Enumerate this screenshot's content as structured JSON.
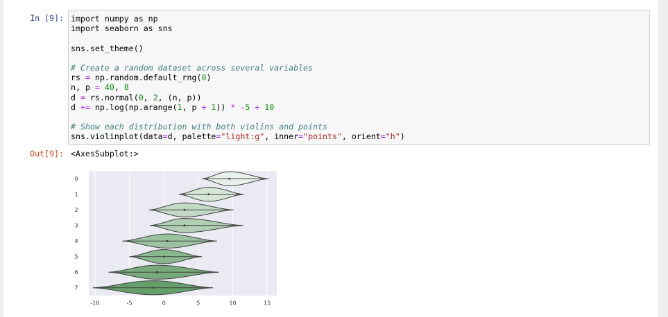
{
  "cell": {
    "prompt": "In [9]:",
    "code": [
      [
        "import numpy as np",
        "import seaborn as sns"
      ],
      [
        "sns.set_theme()"
      ],
      [
        "# Create a random dataset across several variables",
        "rs = np.random.default_rng(0)",
        "n, p = 40, 8",
        "d = rs.normal(0, 2, (n, p))",
        "d += np.log(np.arange(1, p + 1)) * -5 + 10"
      ],
      [
        "# Show each distribution with both violins and points",
        "sns.violinplot(data=d, palette=\"light:g\", inner=\"points\", orient=\"h\")"
      ]
    ]
  },
  "output": {
    "prompt": "Out[9]:",
    "text": "<AxesSubplot:>"
  },
  "chart_data": {
    "type": "violin",
    "orient": "h",
    "categories": [
      "0",
      "1",
      "2",
      "3",
      "4",
      "5",
      "6",
      "7"
    ],
    "violins": [
      {
        "min": 5.6,
        "median": 9.5,
        "max": 15.2,
        "color": "#e9f0ea"
      },
      {
        "min": 2.2,
        "median": 6.5,
        "max": 11.6,
        "color": "#d5e6d7"
      },
      {
        "min": -2.1,
        "median": 3,
        "max": 10.1,
        "color": "#c2dac5"
      },
      {
        "min": -2,
        "median": 3,
        "max": 11.5,
        "color": "#afceb3"
      },
      {
        "min": -6,
        "median": 0.5,
        "max": 7.7,
        "color": "#9cc3a0"
      },
      {
        "min": -5,
        "median": 0,
        "max": 5.5,
        "color": "#89b78e"
      },
      {
        "min": -8,
        "median": -1,
        "max": 8,
        "color": "#77ab7c"
      },
      {
        "min": -10.3,
        "median": -1.5,
        "max": 7.1,
        "color": "#65a06b"
      }
    ],
    "xlim": [
      -10.9,
      16.4
    ],
    "xticks": [
      -10,
      -5,
      0,
      5,
      10,
      15
    ],
    "grid": true
  }
}
